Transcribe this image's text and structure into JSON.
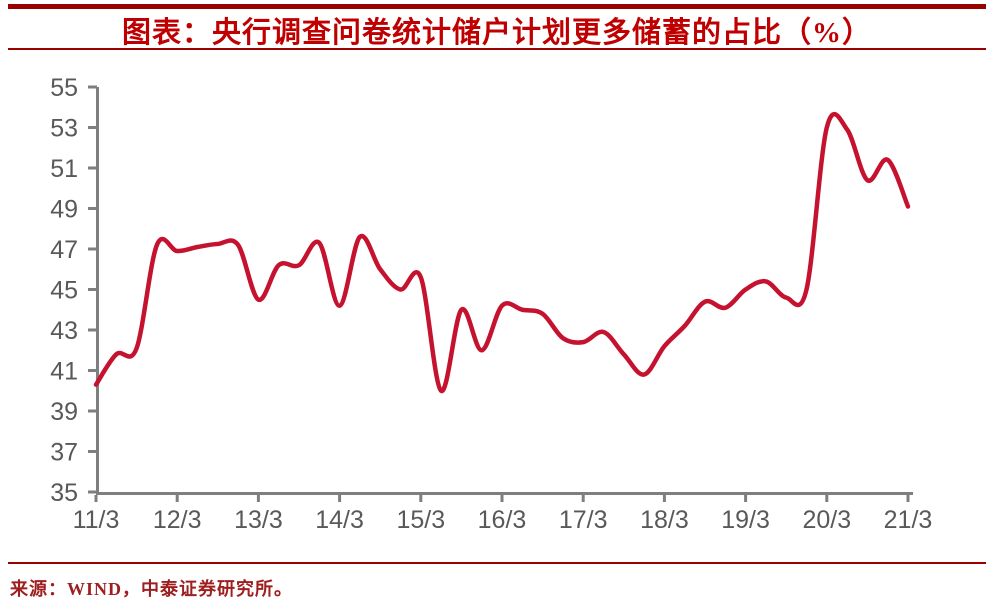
{
  "header": {
    "title": "图表：央行调查问卷统计储户计划更多储蓄的占比（%）"
  },
  "footer": {
    "source": "来源：WIND，中泰证券研究所。"
  },
  "colors": {
    "title_red": "#c00000",
    "rule_red": "#990000",
    "line_red": "#c5122f",
    "axis_gray": "#7f7f7f",
    "tick_label_gray": "#595959",
    "source_red": "#9e1f1f"
  },
  "chart_data": {
    "type": "line",
    "title": "央行调查问卷统计储户计划更多储蓄的占比（%）",
    "xlabel": "",
    "ylabel": "",
    "ylim": [
      35,
      55
    ],
    "y_ticks": [
      55,
      53,
      51,
      49,
      47,
      45,
      43,
      41,
      39,
      37,
      35
    ],
    "x_ticklabels": [
      "11/3",
      "12/3",
      "13/3",
      "14/3",
      "15/3",
      "16/3",
      "17/3",
      "18/3",
      "19/3",
      "20/3",
      "21/3"
    ],
    "grid": false,
    "legend": false,
    "series": [
      {
        "name": "储户计划更多储蓄的占比(%)",
        "x_period_labels": [
          "11/3",
          "11/6",
          "11/9",
          "11/12",
          "12/3",
          "12/6",
          "12/9",
          "12/12",
          "13/3",
          "13/6",
          "13/9",
          "13/12",
          "14/3",
          "14/6",
          "14/9",
          "14/12",
          "15/3",
          "15/6",
          "15/9",
          "15/12",
          "16/3",
          "16/6",
          "16/9",
          "16/12",
          "17/3",
          "17/6",
          "17/9",
          "17/12",
          "18/3",
          "18/6",
          "18/9",
          "18/12",
          "19/3",
          "19/6",
          "19/9",
          "19/12",
          "20/3",
          "20/6",
          "20/9",
          "20/12",
          "21/3"
        ],
        "values": [
          40.3,
          41.8,
          42.1,
          47.2,
          46.9,
          47.1,
          47.25,
          47.2,
          44.5,
          46.2,
          46.2,
          47.3,
          44.2,
          47.6,
          46.0,
          45.0,
          45.6,
          40.0,
          44.0,
          42.0,
          44.2,
          44.0,
          43.8,
          42.6,
          42.4,
          42.9,
          41.8,
          40.8,
          42.2,
          43.2,
          44.4,
          44.1,
          45.0,
          45.4,
          44.6,
          45.0,
          53.0,
          52.9,
          50.4,
          51.4,
          49.1
        ]
      }
    ]
  }
}
